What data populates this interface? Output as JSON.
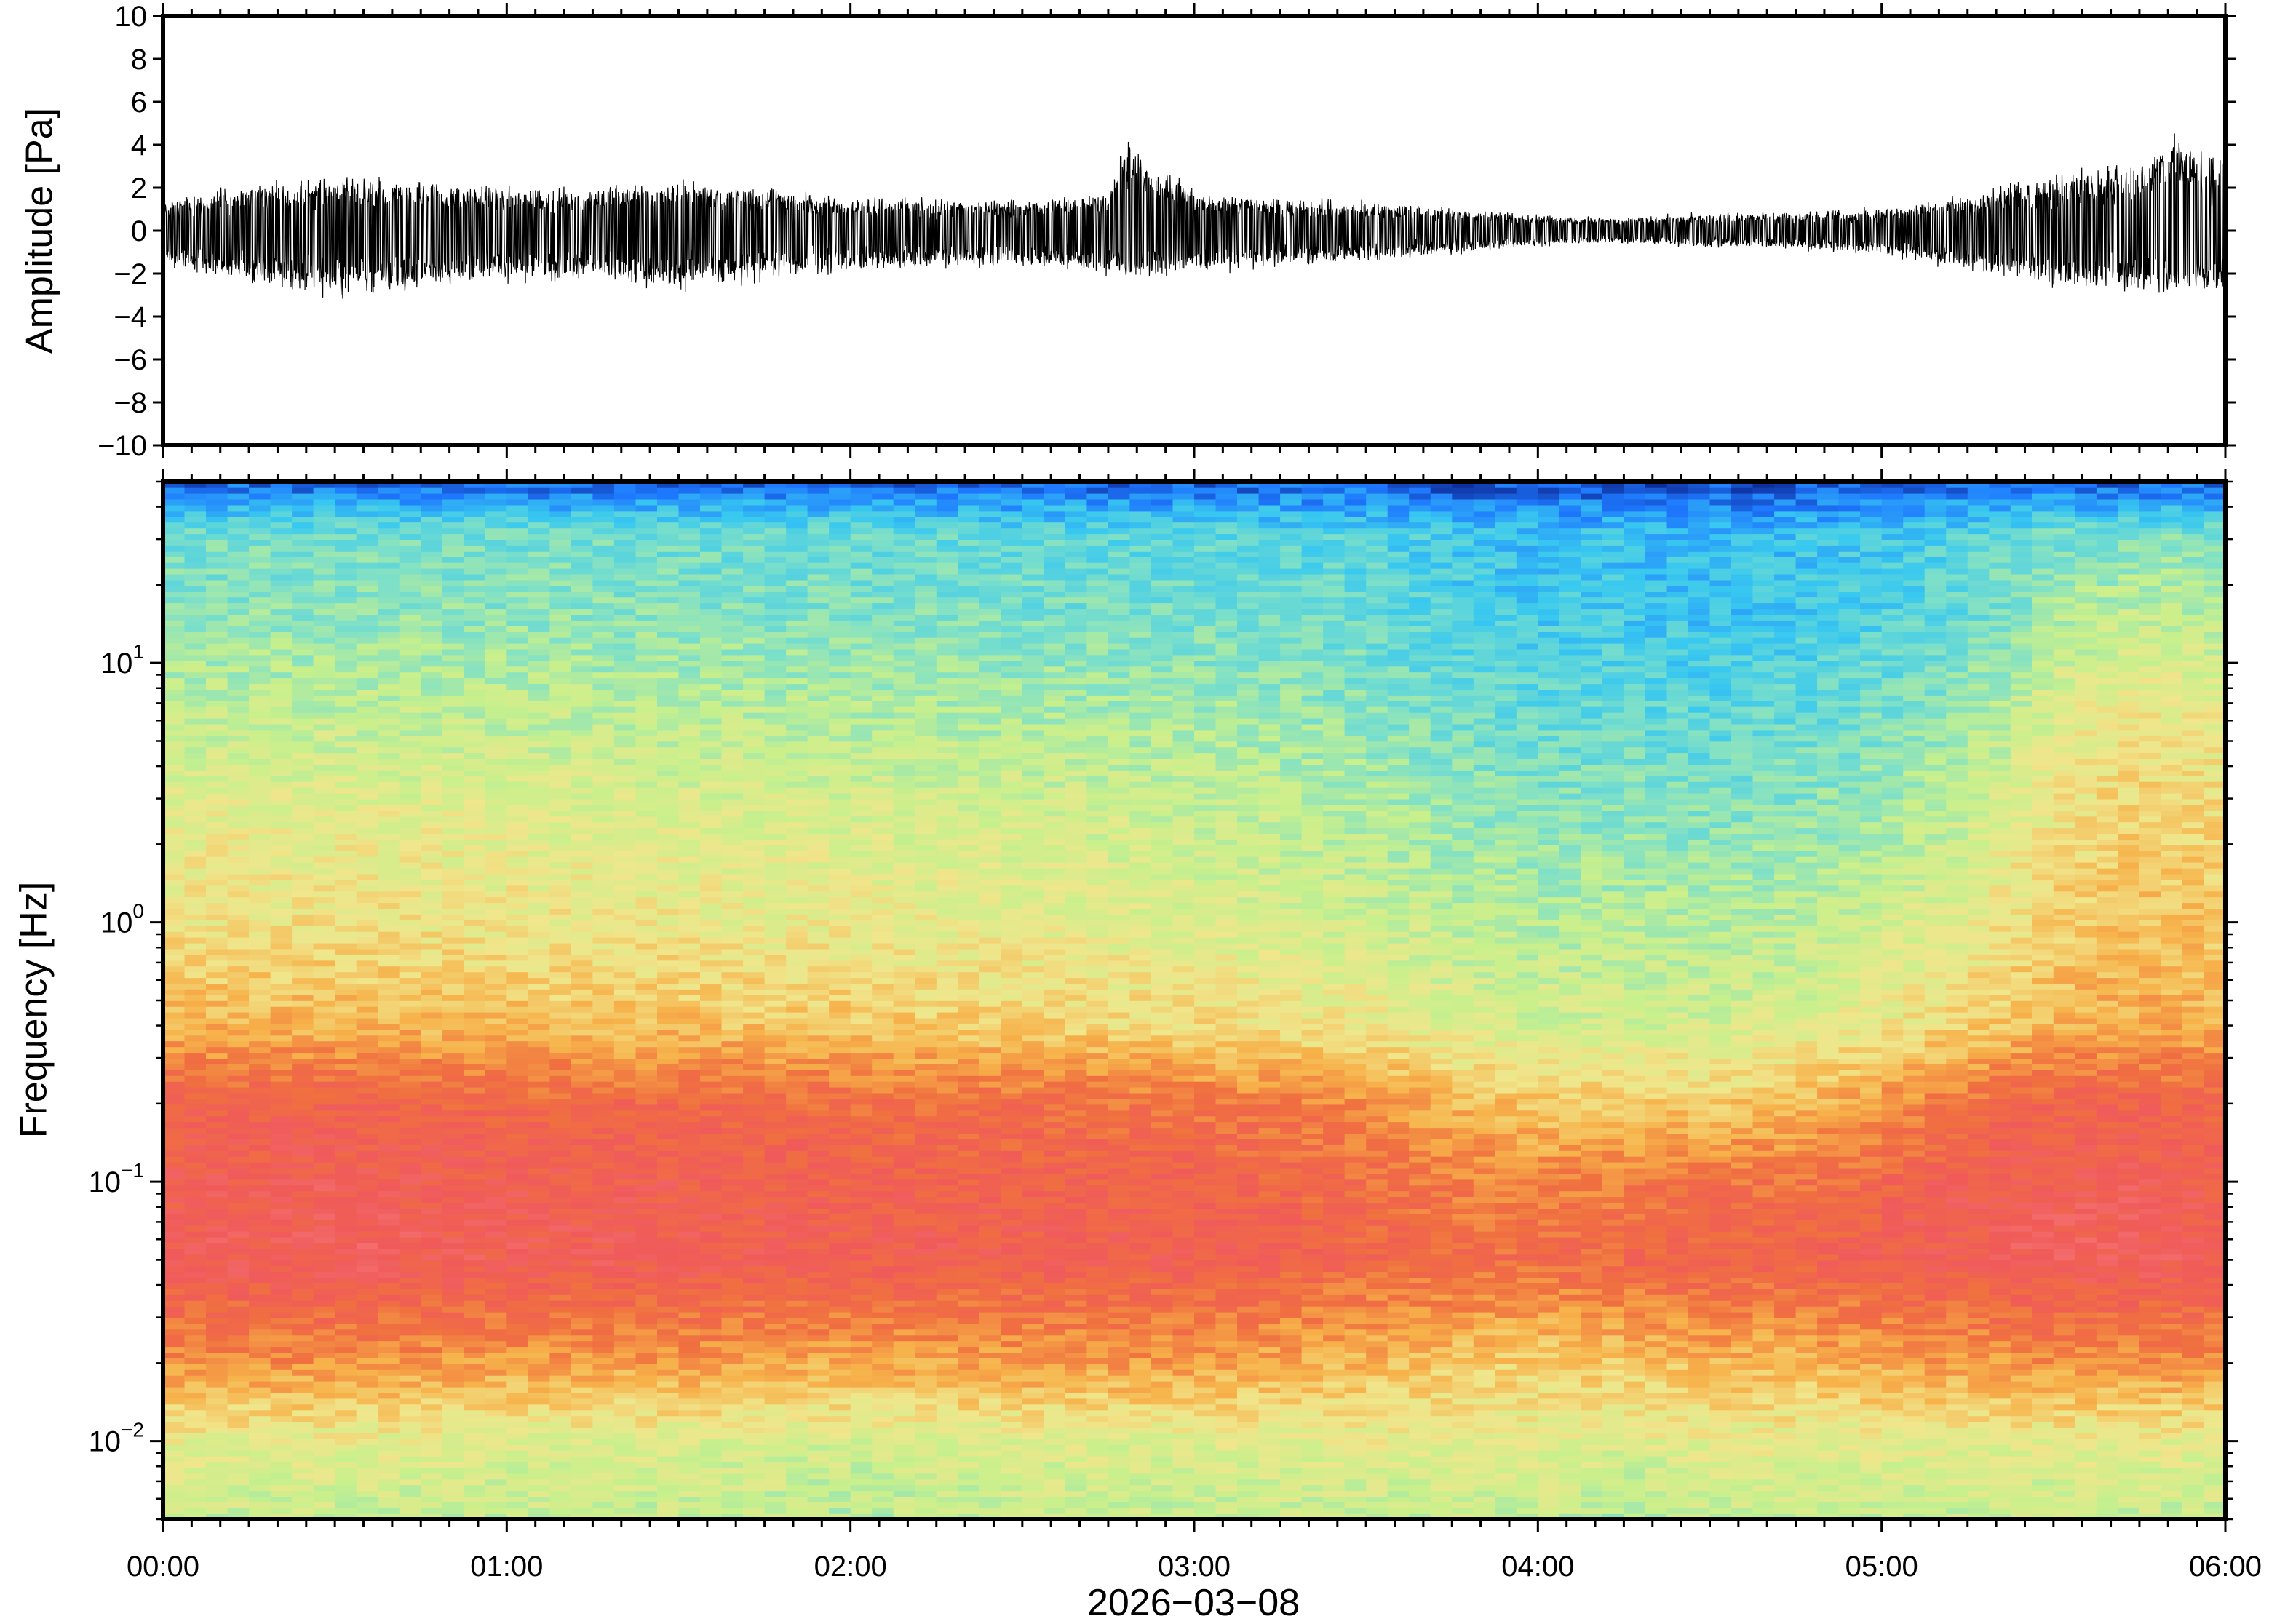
{
  "chart_data": [
    {
      "type": "line",
      "title": "",
      "ylabel": "Amplitude [Pa]",
      "xlabel": "",
      "xlim": [
        "00:00",
        "06:00"
      ],
      "ylim": [
        -10,
        10
      ],
      "yticks": [
        10,
        8,
        6,
        4,
        2,
        0,
        -2,
        -4,
        -6,
        -8,
        -10
      ],
      "ytick_labels": [
        "10",
        "8",
        "6",
        "4",
        "2",
        "0",
        "−2",
        "−4",
        "−6",
        "−8",
        "−10"
      ],
      "grid": false,
      "legend": "none",
      "series": [
        {
          "x_hours": [
            0.0,
            0.25,
            0.5,
            0.75,
            1.0,
            1.25,
            1.5,
            1.75,
            2.0,
            2.25,
            2.5,
            2.75,
            2.8,
            3.0,
            3.25,
            3.5,
            3.75,
            4.0,
            4.25,
            4.5,
            4.75,
            5.0,
            5.25,
            5.5,
            5.75,
            5.85,
            6.0
          ],
          "envelope_max": [
            1.5,
            2.5,
            2.8,
            2.5,
            2.3,
            2.3,
            2.6,
            2.2,
            1.8,
            1.6,
            1.6,
            2.0,
            4.9,
            2.0,
            1.7,
            1.5,
            1.2,
            0.8,
            0.7,
            0.9,
            1.0,
            1.2,
            1.8,
            3.0,
            3.5,
            5.2,
            3.8
          ],
          "envelope_min": [
            -1.8,
            -2.8,
            -3.5,
            -3.0,
            -2.6,
            -2.6,
            -3.2,
            -2.6,
            -2.2,
            -1.9,
            -1.9,
            -2.3,
            -2.6,
            -2.2,
            -1.9,
            -1.6,
            -1.2,
            -0.8,
            -0.7,
            -0.9,
            -1.0,
            -1.3,
            -2.0,
            -3.0,
            -3.2,
            -3.6,
            -3.3
          ],
          "color": "#000000"
        }
      ]
    },
    {
      "type": "heatmap",
      "title": "",
      "ylabel": "Frequency [Hz]",
      "xlabel": "2026−03−08",
      "scale_y": "log",
      "ylim": [
        0.005,
        50
      ],
      "xlim": [
        "00:00",
        "06:00"
      ],
      "x_ticks": [
        "00:00",
        "01:00",
        "02:00",
        "03:00",
        "04:00",
        "05:00",
        "06:00"
      ],
      "yticks": [
        0.01,
        0.1,
        1,
        10
      ],
      "ytick_labels": [
        {
          "base": "10",
          "exp": "−2"
        },
        {
          "base": "10",
          "exp": "−1"
        },
        {
          "base": "10",
          "exp": "0"
        },
        {
          "base": "10",
          "exp": "1"
        }
      ],
      "colormap": "rainbow (low = blue, high = red)",
      "colormap_stops": [
        "#0a1a80",
        "#1e78ff",
        "#38c8f0",
        "#7ee0c8",
        "#c8f08c",
        "#f0e68c",
        "#f7b24a",
        "#f07040",
        "#f05a5a",
        "#f77a7a"
      ],
      "time_hours": [
        0.0,
        0.5,
        1.0,
        1.5,
        2.0,
        2.5,
        3.0,
        3.5,
        3.75,
        4.0,
        4.25,
        4.5,
        4.75,
        5.0,
        5.25,
        5.5,
        5.75,
        6.0
      ],
      "log10_freq_bands": [
        -2.3,
        -2.0,
        -1.7,
        -1.3,
        -1.0,
        -0.7,
        -0.4,
        0.0,
        0.4,
        0.8,
        1.2,
        1.5,
        1.68
      ],
      "relative_power_rows_low_to_high_freq": [
        [
          0.45,
          0.45,
          0.45,
          0.45,
          0.42,
          0.45,
          0.45,
          0.45,
          0.45,
          0.45,
          0.4,
          0.45,
          0.45,
          0.45,
          0.45,
          0.45,
          0.45,
          0.45
        ],
        [
          0.52,
          0.52,
          0.5,
          0.5,
          0.48,
          0.5,
          0.5,
          0.52,
          0.52,
          0.52,
          0.5,
          0.52,
          0.52,
          0.52,
          0.52,
          0.52,
          0.52,
          0.52
        ],
        [
          0.72,
          0.72,
          0.7,
          0.7,
          0.68,
          0.7,
          0.7,
          0.65,
          0.62,
          0.6,
          0.62,
          0.65,
          0.65,
          0.68,
          0.7,
          0.72,
          0.72,
          0.72
        ],
        [
          0.88,
          0.9,
          0.88,
          0.88,
          0.86,
          0.86,
          0.86,
          0.82,
          0.8,
          0.8,
          0.82,
          0.84,
          0.84,
          0.86,
          0.88,
          0.9,
          0.9,
          0.88
        ],
        [
          0.86,
          0.88,
          0.86,
          0.86,
          0.84,
          0.84,
          0.84,
          0.8,
          0.76,
          0.74,
          0.76,
          0.78,
          0.78,
          0.82,
          0.86,
          0.88,
          0.88,
          0.86
        ],
        [
          0.84,
          0.84,
          0.82,
          0.82,
          0.8,
          0.8,
          0.78,
          0.74,
          0.66,
          0.62,
          0.62,
          0.62,
          0.64,
          0.72,
          0.78,
          0.84,
          0.84,
          0.82
        ],
        [
          0.66,
          0.66,
          0.64,
          0.64,
          0.62,
          0.6,
          0.58,
          0.54,
          0.5,
          0.48,
          0.48,
          0.48,
          0.5,
          0.54,
          0.6,
          0.66,
          0.68,
          0.66
        ],
        [
          0.56,
          0.56,
          0.55,
          0.54,
          0.53,
          0.52,
          0.5,
          0.47,
          0.44,
          0.42,
          0.42,
          0.42,
          0.43,
          0.47,
          0.52,
          0.6,
          0.64,
          0.62
        ],
        [
          0.52,
          0.52,
          0.51,
          0.5,
          0.49,
          0.48,
          0.46,
          0.42,
          0.38,
          0.36,
          0.36,
          0.35,
          0.36,
          0.4,
          0.46,
          0.56,
          0.6,
          0.58
        ],
        [
          0.44,
          0.44,
          0.44,
          0.43,
          0.42,
          0.41,
          0.4,
          0.36,
          0.32,
          0.3,
          0.3,
          0.28,
          0.3,
          0.33,
          0.38,
          0.5,
          0.56,
          0.52
        ],
        [
          0.36,
          0.36,
          0.36,
          0.35,
          0.34,
          0.33,
          0.32,
          0.3,
          0.26,
          0.24,
          0.24,
          0.22,
          0.24,
          0.26,
          0.3,
          0.4,
          0.44,
          0.42
        ],
        [
          0.32,
          0.32,
          0.32,
          0.31,
          0.3,
          0.29,
          0.28,
          0.27,
          0.24,
          0.22,
          0.22,
          0.2,
          0.22,
          0.24,
          0.27,
          0.32,
          0.34,
          0.33
        ],
        [
          0.1,
          0.1,
          0.1,
          0.1,
          0.1,
          0.1,
          0.1,
          0.1,
          0.08,
          0.08,
          0.08,
          0.08,
          0.08,
          0.08,
          0.1,
          0.1,
          0.1,
          0.1
        ]
      ]
    }
  ]
}
